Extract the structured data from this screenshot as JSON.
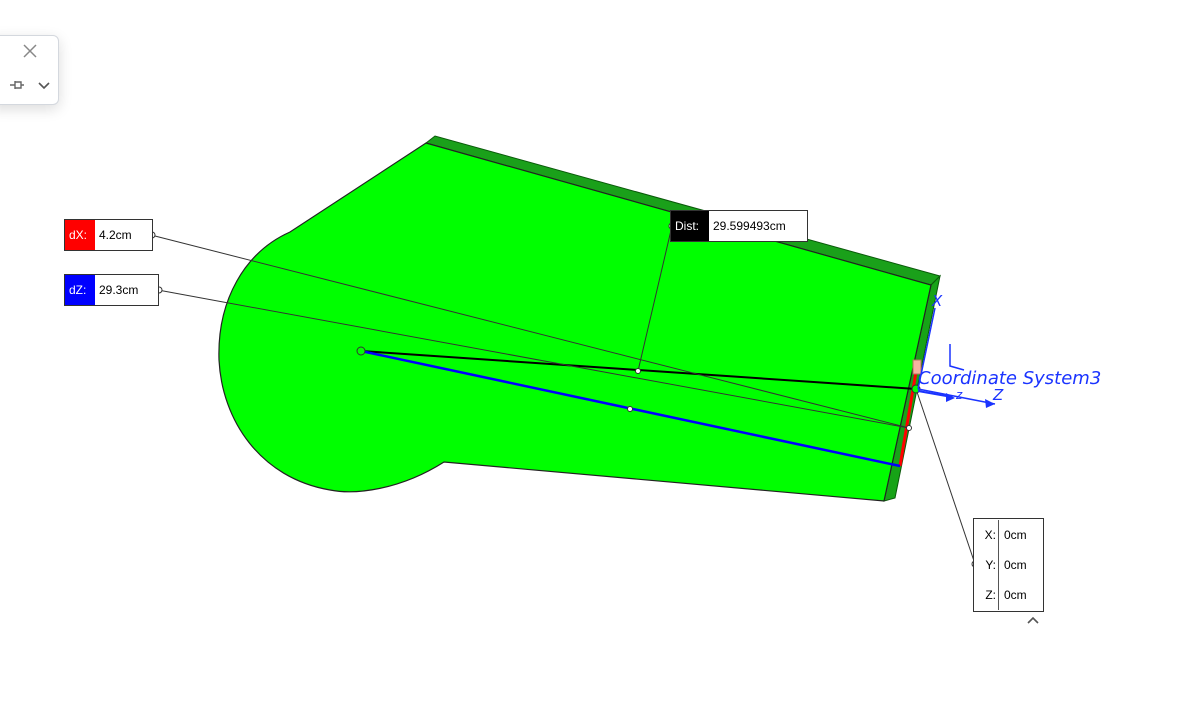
{
  "panel": {
    "close_icon": "close-icon",
    "pin_icon": "pin-icon",
    "dropdown_icon": "chevron-down-icon"
  },
  "measure": {
    "dx": {
      "label": "dX:",
      "value": "4.2cm",
      "color": "#ff0000"
    },
    "dz": {
      "label": "dZ:",
      "value": "29.3cm",
      "color": "#0000ff"
    },
    "dist": {
      "label": "Dist:",
      "value": "29.599493cm",
      "color": "#000000"
    }
  },
  "point": {
    "x_label": "X:",
    "x_value": "0cm",
    "y_label": "Y:",
    "y_value": "0cm",
    "z_label": "Z:",
    "z_value": "0cm"
  },
  "coordinate_system": {
    "name": "Coordinate System3",
    "axis_x": "X",
    "axis_z": "Z",
    "color": "#1a33ff"
  },
  "model": {
    "face_color": "#00ff00",
    "edge_color": "#009900"
  }
}
